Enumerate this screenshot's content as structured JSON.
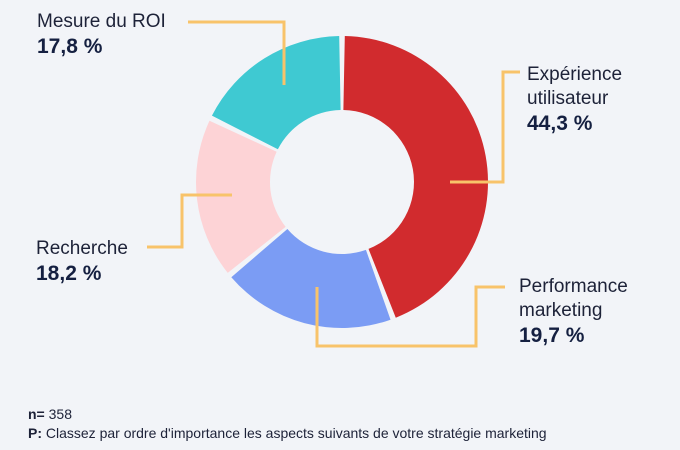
{
  "chart_data": {
    "type": "pie",
    "donut": true,
    "slices": [
      {
        "label": "Expérience utilisateur",
        "label_lines": [
          "Expérience",
          "utilisateur"
        ],
        "value": 44.3,
        "value_text": "44,3 %",
        "color": "#d12b2e"
      },
      {
        "label": "Performance marketing",
        "label_lines": [
          "Performance",
          "marketing"
        ],
        "value": 19.7,
        "value_text": "19,7 %",
        "color": "#7b9cf4"
      },
      {
        "label": "Recherche",
        "label_lines": [
          "Recherche"
        ],
        "value": 18.2,
        "value_text": "18,2 %",
        "color": "#fdd3d6"
      },
      {
        "label": "Mesure du ROI",
        "label_lines": [
          "Mesure du ROI"
        ],
        "value": 17.8,
        "value_text": "17,8 %",
        "color": "#3fc9d2"
      }
    ],
    "leader_color": "#f8c36a"
  },
  "footer": {
    "n_label": "n=",
    "n_value": "358",
    "q_label": "P:",
    "question": "Classez par ordre d'importance les aspects suivants de votre stratégie marketing"
  }
}
